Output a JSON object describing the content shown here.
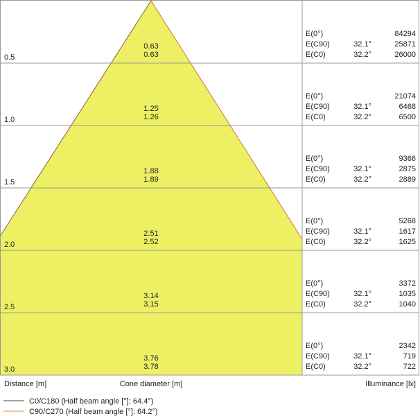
{
  "rows": [
    {
      "distance": "0.5",
      "diameters": [
        0.63,
        0.63
      ],
      "illuminance": [
        {
          "label": "E(0°)",
          "value": 84294
        },
        {
          "label": "E(C90)",
          "angle": "32.1°",
          "value": 25871
        },
        {
          "label": "E(C0)",
          "angle": "32.2°",
          "value": 26000
        }
      ]
    },
    {
      "distance": "1.0",
      "diameters": [
        1.25,
        1.26
      ],
      "illuminance": [
        {
          "label": "E(0°)",
          "value": 21074
        },
        {
          "label": "E(C90)",
          "angle": "32.1°",
          "value": 6468
        },
        {
          "label": "E(C0)",
          "angle": "32.2°",
          "value": 6500
        }
      ]
    },
    {
      "distance": "1.5",
      "diameters": [
        1.88,
        1.89
      ],
      "illuminance": [
        {
          "label": "E(0°)",
          "value": 9366
        },
        {
          "label": "E(C90)",
          "angle": "32.1°",
          "value": 2875
        },
        {
          "label": "E(C0)",
          "angle": "32.2°",
          "value": 2889
        }
      ]
    },
    {
      "distance": "2.0",
      "diameters": [
        2.51,
        2.52
      ],
      "illuminance": [
        {
          "label": "E(0°)",
          "value": 5268
        },
        {
          "label": "E(C90)",
          "angle": "32.1°",
          "value": 1617
        },
        {
          "label": "E(C0)",
          "angle": "32.2°",
          "value": 1625
        }
      ]
    },
    {
      "distance": "2.5",
      "diameters": [
        3.14,
        3.15
      ],
      "illuminance": [
        {
          "label": "E(0°)",
          "value": 3372
        },
        {
          "label": "E(C90)",
          "angle": "32.1°",
          "value": 1035
        },
        {
          "label": "E(C0)",
          "angle": "32.2°",
          "value": 1040
        }
      ]
    },
    {
      "distance": "3.0",
      "diameters": [
        3.76,
        3.78
      ],
      "illuminance": [
        {
          "label": "E(0°)",
          "value": 2342
        },
        {
          "label": "E(C90)",
          "angle": "32.1°",
          "value": 719
        },
        {
          "label": "E(C0)",
          "angle": "32.2°",
          "value": 722
        }
      ]
    }
  ],
  "footer": {
    "distance": "Distance [m]",
    "diameter": "Cone diameter [m]",
    "illuminance": "Illuminance [lx]"
  },
  "legend": [
    "C0/C180 (Half beam angle [°]: 64.4°)",
    "C90/C270 (Half beam angle [°]: 64.2°)"
  ]
}
